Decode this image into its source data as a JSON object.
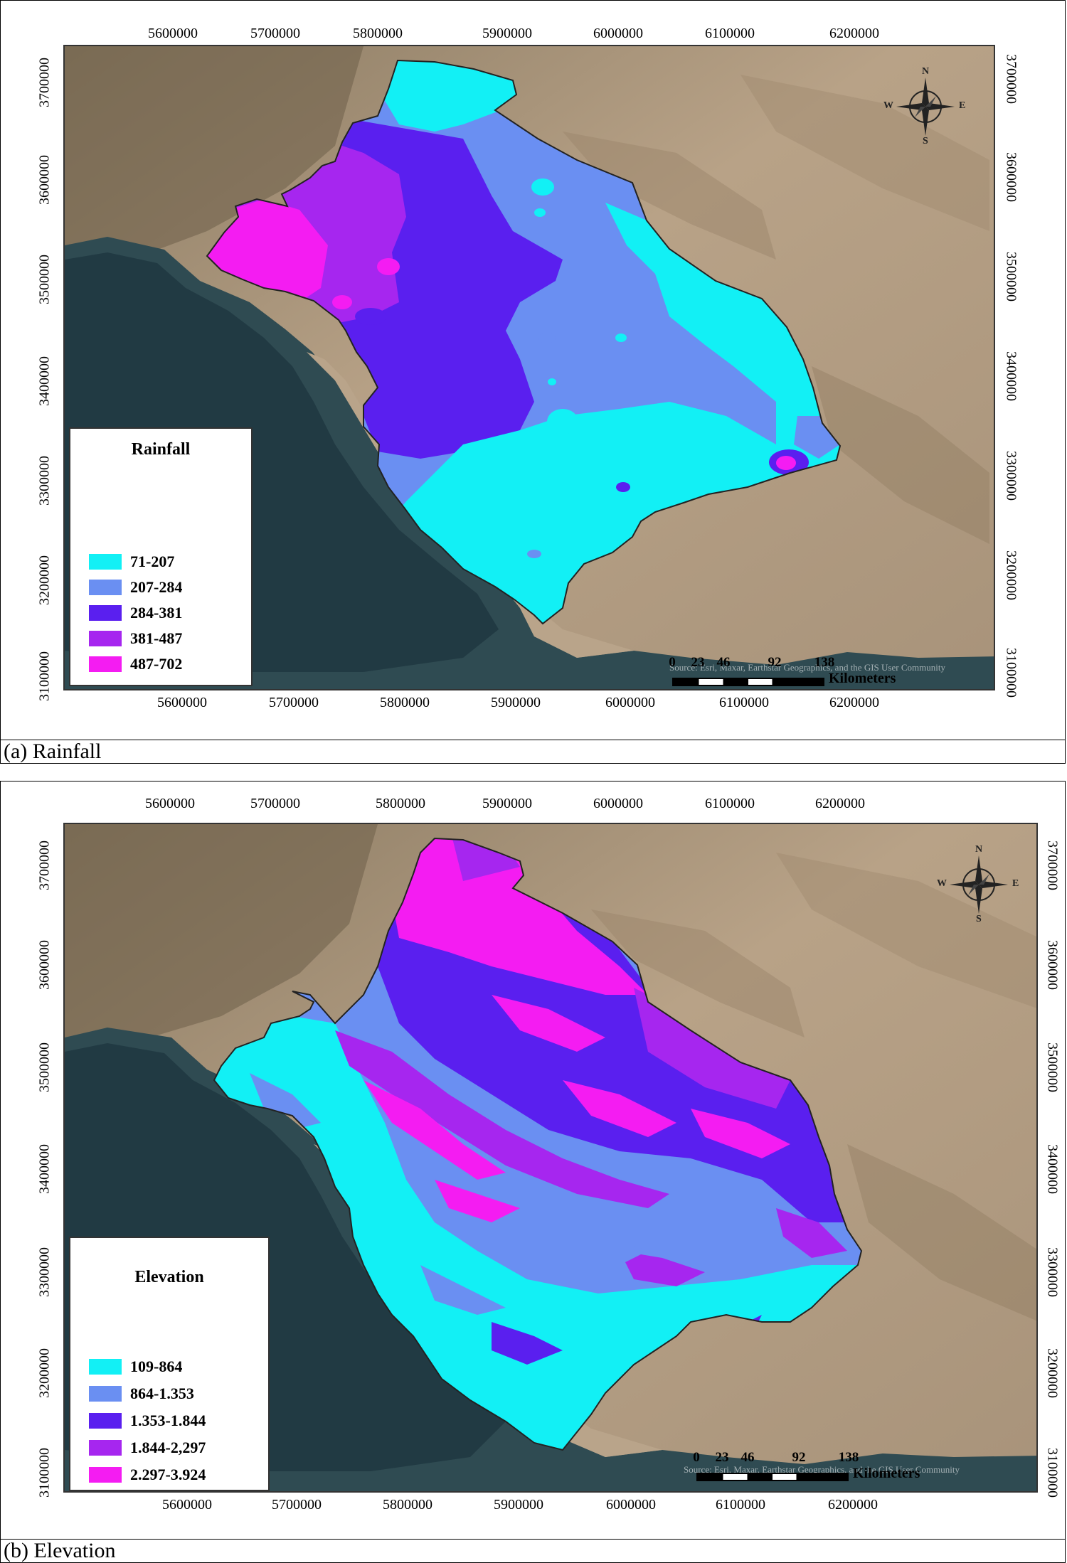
{
  "maps": [
    {
      "id": "rainfall",
      "caption": "(a) Rainfall",
      "x_ticks": [
        "5600000",
        "5700000",
        "5800000",
        "5900000",
        "6000000",
        "6100000",
        "6200000"
      ],
      "y_ticks": [
        "3700000",
        "3600000",
        "3500000",
        "3400000",
        "3300000",
        "3200000",
        "3100000"
      ],
      "legend": {
        "title": "Rainfall",
        "classes": [
          {
            "label": "71-207",
            "color": "#12f0f5"
          },
          {
            "label": "207-284",
            "color": "#6a8ff2"
          },
          {
            "label": "284-381",
            "color": "#5a1fef"
          },
          {
            "label": "381-487",
            "color": "#a626ef"
          },
          {
            "label": "487-702",
            "color": "#f41cf2"
          }
        ]
      },
      "compass": {
        "n": "N",
        "e": "E",
        "s": "S",
        "w": "W"
      },
      "scale": {
        "labels": [
          "0",
          "23",
          "46",
          "92",
          "138"
        ],
        "units": "Kilometers"
      },
      "attribution": "Source: Esri, Maxar, Earthstar Geographics, and the GIS User Community"
    },
    {
      "id": "elevation",
      "caption": "(b) Elevation",
      "x_ticks": [
        "5600000",
        "5700000",
        "5800000",
        "5900000",
        "6000000",
        "6100000",
        "6200000"
      ],
      "y_ticks": [
        "3700000",
        "3600000",
        "3500000",
        "3400000",
        "3300000",
        "3200000",
        "3100000"
      ],
      "legend": {
        "title": "Elevation",
        "classes": [
          {
            "label": "109-864",
            "color": "#12f0f5"
          },
          {
            "label": "864-1.353",
            "color": "#6a8ff2"
          },
          {
            "label": "1.353-1.844",
            "color": "#5a1fef"
          },
          {
            "label": "1.844-2,297",
            "color": "#a626ef"
          },
          {
            "label": "2.297-3.924",
            "color": "#f41cf2"
          }
        ]
      },
      "compass": {
        "n": "N",
        "e": "E",
        "s": "S",
        "w": "W"
      },
      "scale": {
        "labels": [
          "0",
          "23",
          "46",
          "92",
          "138"
        ],
        "units": "Kilometers"
      },
      "attribution": "Source: Esri, Maxar, Earthstar Geographics, and the GIS User Community"
    }
  ]
}
